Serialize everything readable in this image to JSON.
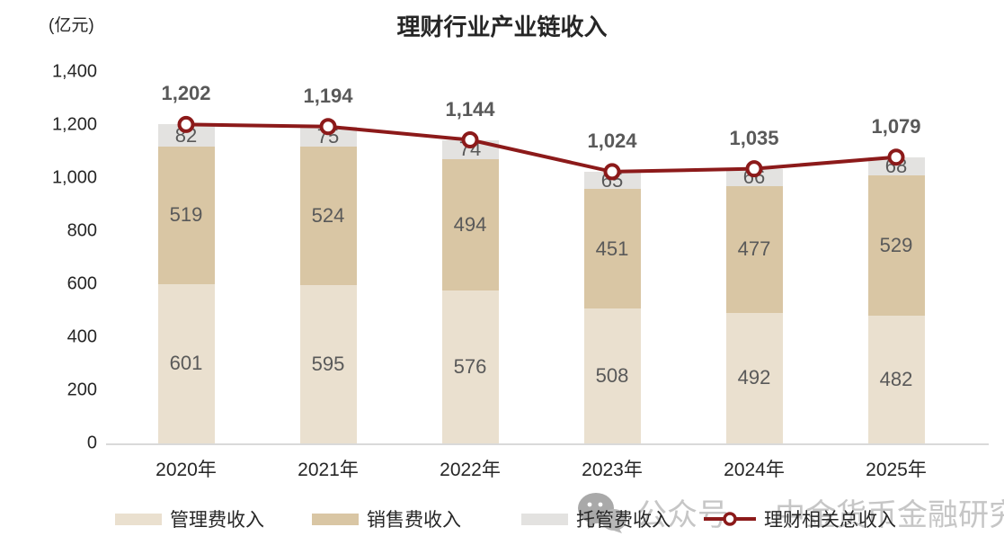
{
  "title": "理财行业产业链收入",
  "unit_label": "(亿元)",
  "watermark": {
    "icon": "wechat-icon",
    "prefix": "公众号",
    "suffix": "中金货币金融研究"
  },
  "chart_data": {
    "type": "bar",
    "subtype": "stacked-bar-with-line",
    "title": "理财行业产业链收入",
    "unit": "亿元",
    "categories": [
      "2020年",
      "2021年",
      "2022年",
      "2023年",
      "2024年",
      "2025年"
    ],
    "series": [
      {
        "name": "管理费收入",
        "type": "bar",
        "color": "#EAE0CF",
        "values": [
          601,
          595,
          576,
          508,
          492,
          482
        ]
      },
      {
        "name": "销售费收入",
        "type": "bar",
        "color": "#D9C6A4",
        "values": [
          519,
          524,
          494,
          451,
          477,
          529
        ]
      },
      {
        "name": "托管费收入",
        "type": "bar",
        "color": "#E3E2E0",
        "values": [
          82,
          75,
          74,
          65,
          66,
          68
        ]
      },
      {
        "name": "理财相关总收入",
        "type": "line",
        "color": "#8C1A1A",
        "values": [
          1202,
          1194,
          1144,
          1024,
          1035,
          1079
        ]
      }
    ],
    "total_labels": [
      "1,202",
      "1,194",
      "1,144",
      "1,024",
      "1,035",
      "1,079"
    ],
    "value_label_color": "#595959",
    "ylim": [
      0,
      1400
    ],
    "yticks": [
      0,
      200,
      400,
      600,
      800,
      1000,
      1200,
      1400
    ],
    "ytick_labels": [
      "0",
      "200",
      "400",
      "600",
      "800",
      "1,000",
      "1,200",
      "1,400"
    ],
    "grid": false,
    "legend_position": "bottom"
  }
}
